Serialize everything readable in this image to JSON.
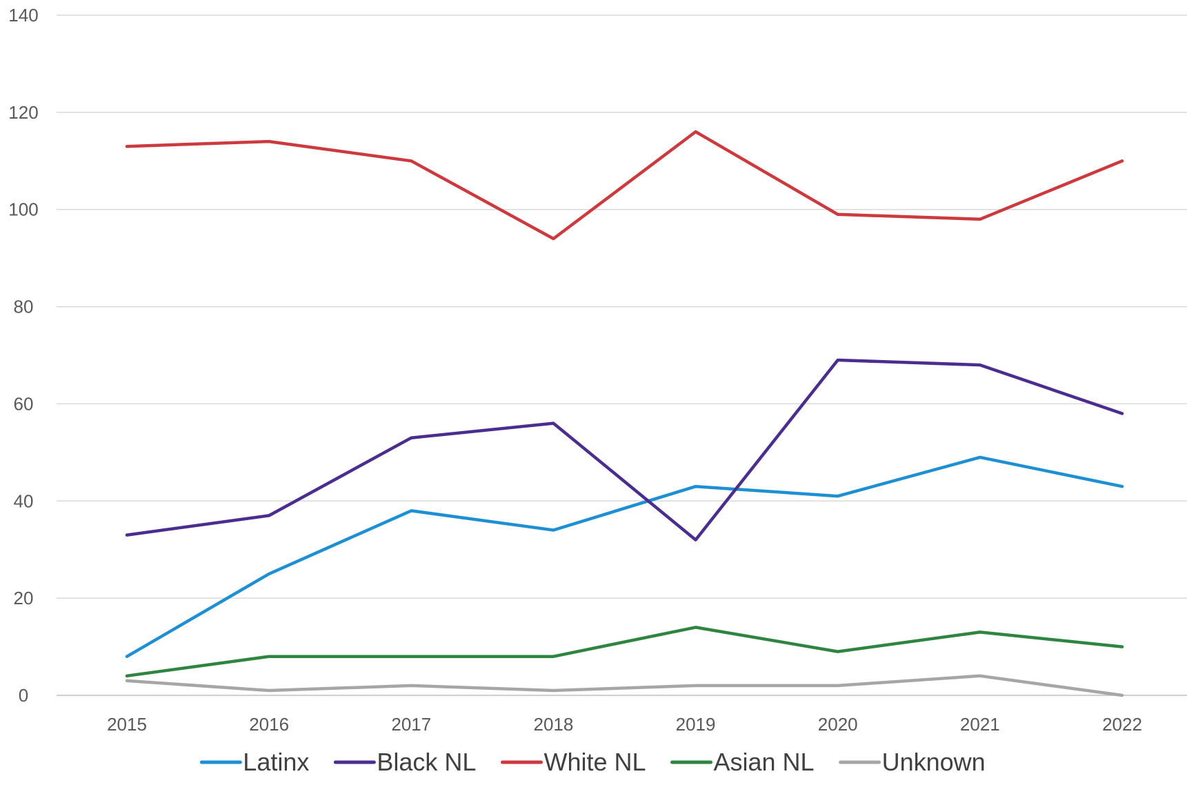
{
  "chart_data": {
    "type": "line",
    "title": "",
    "xlabel": "",
    "ylabel": "",
    "categories": [
      "2015",
      "2016",
      "2017",
      "2018",
      "2019",
      "2020",
      "2021",
      "2022"
    ],
    "ylim": [
      0,
      140
    ],
    "yticks": [
      0,
      20,
      40,
      60,
      80,
      100,
      120,
      140
    ],
    "grid": true,
    "legend_position": "bottom",
    "series": [
      {
        "name": "Latinx",
        "color": "#1f8fd4",
        "values": [
          8,
          25,
          38,
          34,
          43,
          41,
          49,
          43
        ]
      },
      {
        "name": "Black NL",
        "color": "#4b2c8f",
        "values": [
          33,
          37,
          53,
          56,
          32,
          69,
          68,
          58
        ]
      },
      {
        "name": "White NL",
        "color": "#cc3a3e",
        "values": [
          113,
          114,
          110,
          94,
          116,
          99,
          98,
          110
        ]
      },
      {
        "name": "Asian NL",
        "color": "#2e8540",
        "values": [
          4,
          8,
          8,
          8,
          14,
          9,
          13,
          10
        ]
      },
      {
        "name": "Unknown",
        "color": "#a6a6a6",
        "values": [
          3,
          1,
          2,
          1,
          2,
          2,
          4,
          0
        ]
      }
    ]
  }
}
